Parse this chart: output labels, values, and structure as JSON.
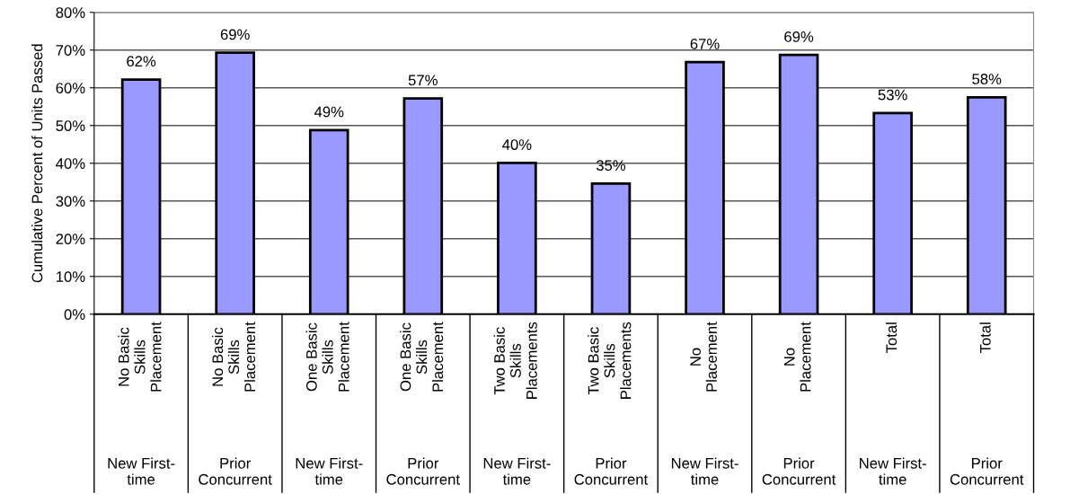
{
  "chart_data": {
    "type": "bar",
    "ylabel": "Cumulative Percent of Units Passed",
    "categories": [
      "No Basic\nSkills\nPlacement",
      "No Basic\nSkills\nPlacement",
      "One Basic\nSkills\nPlacement",
      "One Basic\nSkills\nPlacement",
      "Two Basic\nSkills\nPlacements",
      "Two Basic\nSkills\nPlacements",
      "No\nPlacement",
      "No\nPlacement",
      "Total",
      "Total"
    ],
    "values": [
      62.2,
      69.3,
      48.8,
      57.2,
      40.1,
      34.6,
      66.8,
      68.7,
      53.3,
      57.5
    ],
    "value_labels": [
      "62%",
      "69%",
      "49%",
      "57%",
      "40%",
      "35%",
      "67%",
      "69%",
      "53%",
      "58%"
    ],
    "annotations": [
      "New First-\ntime",
      "Prior\nConcurrent",
      "New First-\ntime",
      "Prior\nConcurrent",
      "New First-\ntime",
      "Prior\nConcurrent",
      "New First-\ntime",
      "Prior\nConcurrent",
      "New First-\ntime",
      "Prior\nConcurrent"
    ],
    "color": "#9999ff",
    "ylim": [
      0,
      80
    ],
    "yticks": [
      {
        "value": 0,
        "label": "0%"
      },
      {
        "value": 10,
        "label": "10%"
      },
      {
        "value": 20,
        "label": "20%"
      },
      {
        "value": 30,
        "label": "30%"
      },
      {
        "value": 40,
        "label": "40%"
      },
      {
        "value": 50,
        "label": "50%"
      },
      {
        "value": 60,
        "label": "60%"
      },
      {
        "value": 70,
        "label": "70%"
      },
      {
        "value": 80,
        "label": "80%"
      }
    ],
    "grid": "y",
    "legend": false
  }
}
